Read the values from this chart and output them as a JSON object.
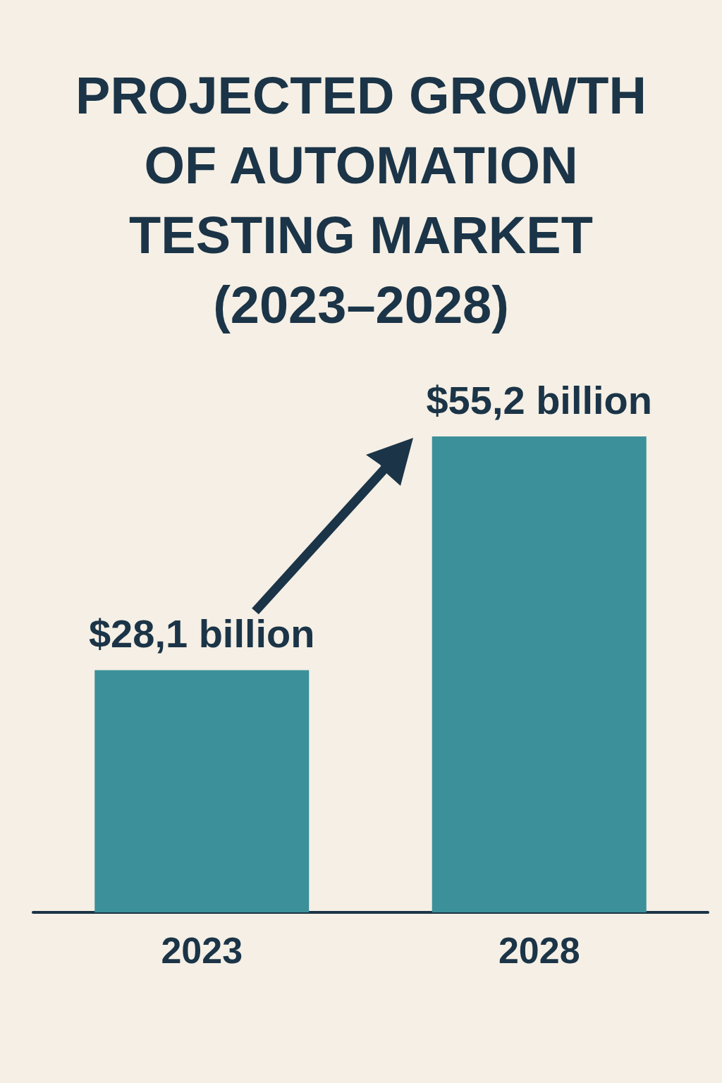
{
  "chart_data": {
    "type": "bar",
    "title": "PROJECTED GROWTH OF AUTOMATION TESTING MARKET (2023–2028)",
    "categories": [
      "2023",
      "2028"
    ],
    "values": [
      28.1,
      55.2
    ],
    "value_labels": [
      "$28,1 billion",
      "$55,2 billion"
    ],
    "color": "#3b9099"
  }
}
